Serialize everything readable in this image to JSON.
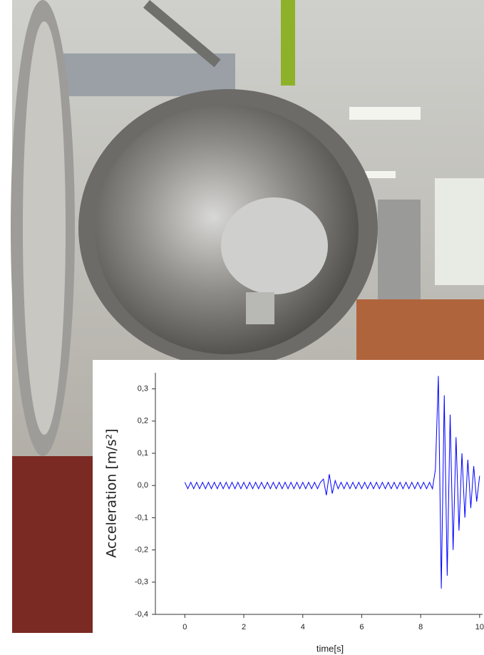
{
  "chart_data": {
    "type": "line",
    "y_label": "Acceleration [m/s²]",
    "x_label": "time[s]",
    "xlim": [
      -1,
      10.1
    ],
    "ylim": [
      -0.4,
      0.35
    ],
    "xticks": [
      0,
      2,
      4,
      6,
      8,
      10
    ],
    "yticks": [
      {
        "value": 0.3,
        "label": "0,3"
      },
      {
        "value": 0.2,
        "label": "0,2"
      },
      {
        "value": 0.1,
        "label": "0,1"
      },
      {
        "value": 0.0,
        "label": "0,0"
      },
      {
        "value": -0.1,
        "label": "-0,1"
      },
      {
        "value": -0.2,
        "label": "-0,2"
      },
      {
        "value": -0.3,
        "label": "-0,3"
      },
      {
        "value": -0.4,
        "label": "-0,4"
      }
    ],
    "color": "#0000ff",
    "x": [
      0,
      0.1,
      0.2,
      0.3,
      0.4,
      0.5,
      0.6,
      0.7,
      0.8,
      0.9,
      1,
      1.1,
      1.2,
      1.3,
      1.4,
      1.5,
      1.6,
      1.7,
      1.8,
      1.9,
      2,
      2.1,
      2.2,
      2.3,
      2.4,
      2.5,
      2.6,
      2.7,
      2.8,
      2.9,
      3,
      3.1,
      3.2,
      3.3,
      3.4,
      3.5,
      3.6,
      3.7,
      3.8,
      3.9,
      4,
      4.1,
      4.2,
      4.3,
      4.4,
      4.5,
      4.6,
      4.7,
      4.8,
      4.9,
      5,
      5.1,
      5.2,
      5.3,
      5.4,
      5.5,
      5.6,
      5.7,
      5.8,
      5.9,
      6,
      6.1,
      6.2,
      6.3,
      6.4,
      6.5,
      6.6,
      6.7,
      6.8,
      6.9,
      7,
      7.1,
      7.2,
      7.3,
      7.4,
      7.5,
      7.6,
      7.7,
      7.8,
      7.9,
      8,
      8.1,
      8.2,
      8.3,
      8.4,
      8.5,
      8.6,
      8.7,
      8.8,
      8.9,
      9,
      9.1,
      9.2,
      9.3,
      9.4,
      9.5,
      9.6,
      9.7,
      9.8,
      9.9,
      10
    ],
    "values": [
      0.01,
      -0.01,
      0.01,
      -0.01,
      0.01,
      -0.01,
      0.01,
      -0.01,
      0.01,
      -0.01,
      0.01,
      -0.01,
      0.01,
      -0.01,
      0.01,
      -0.01,
      0.01,
      -0.01,
      0.01,
      -0.01,
      0.01,
      -0.01,
      0.01,
      -0.01,
      0.01,
      -0.01,
      0.01,
      -0.01,
      0.01,
      -0.01,
      0.01,
      -0.01,
      0.01,
      -0.01,
      0.01,
      -0.01,
      0.01,
      -0.01,
      0.01,
      -0.01,
      0.01,
      -0.01,
      0.01,
      -0.01,
      0.01,
      -0.01,
      0.01,
      0.02,
      -0.03,
      0.035,
      -0.025,
      0.015,
      -0.01,
      0.01,
      -0.01,
      0.01,
      -0.01,
      0.01,
      -0.01,
      0.01,
      -0.01,
      0.01,
      -0.01,
      0.01,
      -0.01,
      0.01,
      -0.01,
      0.01,
      -0.01,
      0.01,
      -0.01,
      0.01,
      -0.01,
      0.01,
      -0.01,
      0.01,
      -0.01,
      0.01,
      -0.01,
      0.01,
      -0.01,
      0.01,
      -0.01,
      0.01,
      -0.01,
      0.05,
      0.34,
      -0.32,
      0.28,
      -0.28,
      0.22,
      -0.2,
      0.15,
      -0.14,
      0.1,
      -0.1,
      0.08,
      -0.07,
      0.06,
      -0.05,
      0.03
    ]
  }
}
